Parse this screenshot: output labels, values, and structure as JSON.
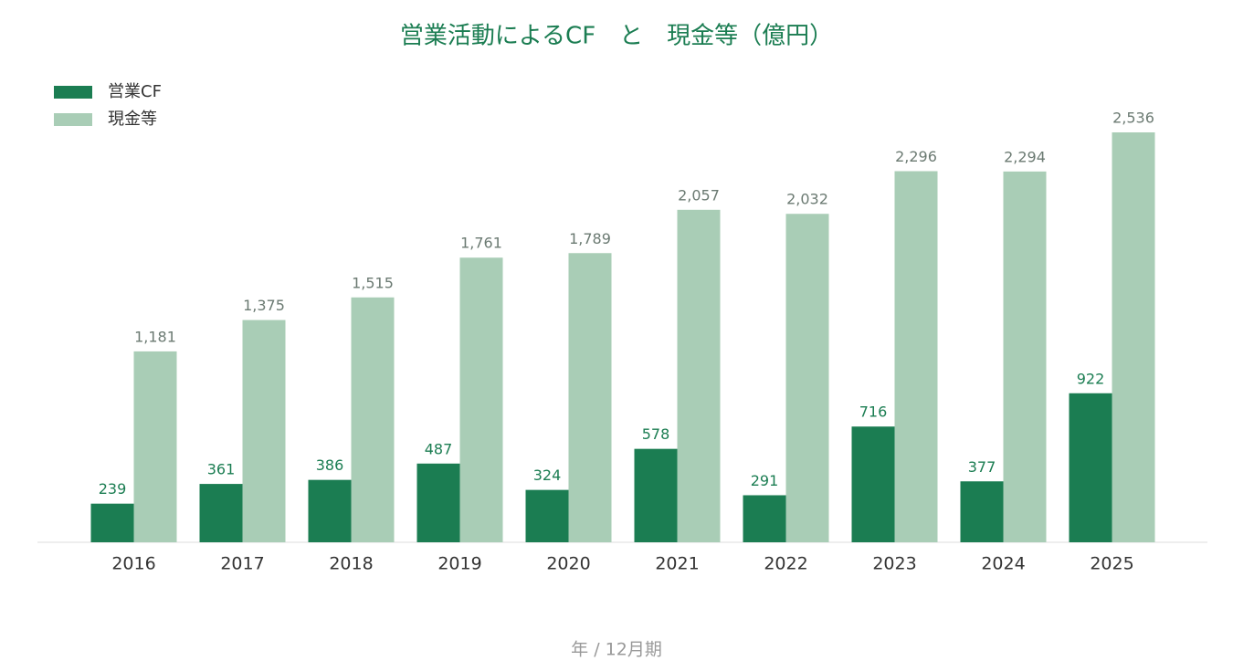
{
  "chart_data": {
    "type": "bar",
    "title": "営業活動によるCF　と　現金等（億円）",
    "x_label": "年 / 12月期",
    "categories": [
      "2016",
      "2017",
      "2018",
      "2019",
      "2020",
      "2021",
      "2022",
      "2023",
      "2024",
      "2025"
    ],
    "series": [
      {
        "name": "営業CF",
        "color": "#1b7d52",
        "values": [
          239,
          361,
          386,
          487,
          324,
          578,
          291,
          716,
          377,
          922
        ]
      },
      {
        "name": "現金等",
        "color": "#a9cdb6",
        "values": [
          1181,
          1375,
          1515,
          1761,
          1789,
          2057,
          2032,
          2296,
          2294,
          2536
        ],
        "value_labels": [
          "1,181",
          "1,375",
          "1,515",
          "1,761",
          "1,789",
          "2,057",
          "2,032",
          "2,296",
          "2,294",
          "2,536"
        ]
      }
    ],
    "legend": "top-left"
  }
}
